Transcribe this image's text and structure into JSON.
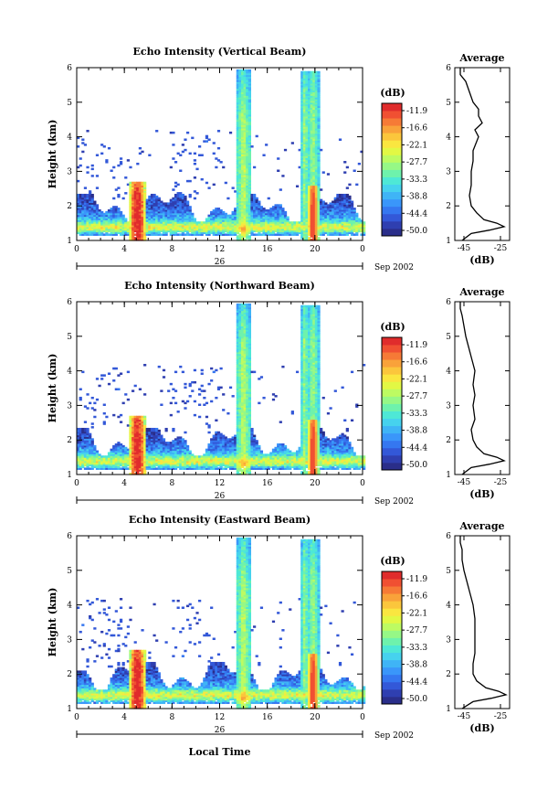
{
  "figure": {
    "x_axis_label": "Local Time",
    "date_label": "Sep 2002",
    "day_label": "26"
  },
  "colorbar": {
    "unit_label": "(dB)",
    "tick_labels": [
      "-11.9",
      "-16.6",
      "-22.1",
      "-27.7",
      "-33.3",
      "-38.8",
      "-44.4",
      "-50.0"
    ],
    "colors": [
      "#2a2e8a",
      "#2f3fb0",
      "#3358d8",
      "#3577f0",
      "#3a96fa",
      "#3fb4f6",
      "#46d2ee",
      "#4ee8d6",
      "#6ef2ac",
      "#96f886",
      "#bdfb62",
      "#e2f844",
      "#fae640",
      "#fbc63c",
      "#f9a23a",
      "#f67a36",
      "#f05032",
      "#e02c2c"
    ]
  },
  "chart_data": [
    {
      "type": "heatmap",
      "title": "Echo Intensity (Vertical Beam)",
      "xlabel": "",
      "ylabel": "Height (km)",
      "xlim": [
        0,
        24
      ],
      "ylim": [
        1,
        6
      ],
      "x_ticks": [
        "0",
        "4",
        "8",
        "12",
        "16",
        "20",
        "0"
      ],
      "y_ticks": [
        "1",
        "2",
        "3",
        "4",
        "5",
        "6"
      ],
      "colorbar_range_dB": [
        -50.0,
        -11.9
      ],
      "features": [
        {
          "kind": "low-level echo layer",
          "time_h": [
            0,
            24
          ],
          "height_km": [
            1.2,
            2.3
          ],
          "peak_dB": -30
        },
        {
          "kind": "rain cell",
          "time_h": [
            4.5,
            5.7
          ],
          "height_km": [
            1.2,
            2.6
          ],
          "peak_dB": -14
        },
        {
          "kind": "deep convection column",
          "time_h": [
            13.6,
            14.4
          ],
          "height_km": [
            1.2,
            6.0
          ],
          "peak_dB": -30
        },
        {
          "kind": "deep convection column",
          "time_h": [
            19.0,
            20.4
          ],
          "height_km": [
            1.2,
            6.0
          ],
          "peak_dB": -16
        }
      ],
      "average_profile": {
        "title": "Average",
        "xlabel": "(dB)",
        "x_ticks": [
          "-45",
          "-25"
        ],
        "xlim": [
          -50,
          -20
        ],
        "height_km": [
          1.0,
          1.2,
          1.3,
          1.4,
          1.5,
          1.6,
          1.8,
          2.0,
          2.3,
          2.6,
          3.0,
          3.3,
          3.6,
          4.0,
          4.2,
          4.4,
          4.6,
          4.8,
          5.0,
          5.3,
          5.6,
          5.8,
          6.0
        ],
        "dB": [
          -46,
          -41,
          -31,
          -23,
          -27,
          -34,
          -38,
          -41,
          -42,
          -41,
          -41,
          -40,
          -40,
          -37,
          -39,
          -35,
          -37,
          -37,
          -40,
          -42,
          -44,
          -47,
          -47
        ]
      }
    },
    {
      "type": "heatmap",
      "title": "Echo Intensity (Northward Beam)",
      "xlabel": "",
      "ylabel": "Height (km)",
      "xlim": [
        0,
        24
      ],
      "ylim": [
        1,
        6
      ],
      "x_ticks": [
        "0",
        "4",
        "8",
        "12",
        "16",
        "20",
        "0"
      ],
      "y_ticks": [
        "1",
        "2",
        "3",
        "4",
        "5",
        "6"
      ],
      "colorbar_range_dB": [
        -50.0,
        -11.9
      ],
      "features": [
        {
          "kind": "low-level echo layer",
          "time_h": [
            0,
            24
          ],
          "height_km": [
            1.2,
            2.2
          ],
          "peak_dB": -30
        },
        {
          "kind": "rain cell",
          "time_h": [
            4.5,
            5.7
          ],
          "height_km": [
            1.2,
            2.7
          ],
          "peak_dB": -14
        },
        {
          "kind": "deep convection column",
          "time_h": [
            13.6,
            14.4
          ],
          "height_km": [
            1.2,
            5.9
          ],
          "peak_dB": -30
        },
        {
          "kind": "deep convection column",
          "time_h": [
            19.0,
            20.4
          ],
          "height_km": [
            1.2,
            5.9
          ],
          "peak_dB": -16
        }
      ],
      "average_profile": {
        "title": "Average",
        "xlabel": "(dB)",
        "x_ticks": [
          "-45",
          "-25"
        ],
        "xlim": [
          -50,
          -20
        ],
        "height_km": [
          1.0,
          1.2,
          1.3,
          1.4,
          1.5,
          1.6,
          1.8,
          2.0,
          2.3,
          2.6,
          3.0,
          3.3,
          3.6,
          4.0,
          4.2,
          4.4,
          4.6,
          4.8,
          5.0,
          5.3,
          5.6,
          5.8,
          6.0
        ],
        "dB": [
          -46,
          -41,
          -31,
          -23,
          -27,
          -34,
          -38,
          -40,
          -41,
          -39,
          -40,
          -39,
          -40,
          -39,
          -40,
          -41,
          -42,
          -43,
          -44,
          -45,
          -46,
          -47,
          -47
        ]
      }
    },
    {
      "type": "heatmap",
      "title": "Echo Intensity (Eastward Beam)",
      "xlabel": "Local Time",
      "ylabel": "Height (km)",
      "xlim": [
        0,
        24
      ],
      "ylim": [
        1,
        6
      ],
      "x_ticks": [
        "0",
        "4",
        "8",
        "12",
        "16",
        "20",
        "0"
      ],
      "y_ticks": [
        "1",
        "2",
        "3",
        "4",
        "5",
        "6"
      ],
      "colorbar_range_dB": [
        -50.0,
        -11.9
      ],
      "features": [
        {
          "kind": "low-level echo layer",
          "time_h": [
            0,
            24
          ],
          "height_km": [
            1.2,
            2.3
          ],
          "peak_dB": -30
        },
        {
          "kind": "rain cell",
          "time_h": [
            4.5,
            5.7
          ],
          "height_km": [
            1.2,
            2.7
          ],
          "peak_dB": -14
        },
        {
          "kind": "deep convection column",
          "time_h": [
            13.6,
            14.4
          ],
          "height_km": [
            1.2,
            5.9
          ],
          "peak_dB": -30
        },
        {
          "kind": "deep convection column",
          "time_h": [
            19.0,
            20.4
          ],
          "height_km": [
            1.2,
            5.9
          ],
          "peak_dB": -16
        }
      ],
      "average_profile": {
        "title": "Average",
        "xlabel": "(dB)",
        "x_ticks": [
          "-45",
          "-25"
        ],
        "xlim": [
          -50,
          -20
        ],
        "height_km": [
          1.0,
          1.2,
          1.3,
          1.4,
          1.5,
          1.6,
          1.8,
          2.0,
          2.3,
          2.6,
          3.0,
          3.3,
          3.6,
          4.0,
          4.2,
          4.4,
          4.6,
          4.8,
          5.0,
          5.3,
          5.6,
          5.8,
          6.0
        ],
        "dB": [
          -46,
          -40,
          -30,
          -22,
          -26,
          -33,
          -38,
          -40,
          -40,
          -39,
          -39,
          -39,
          -39,
          -40,
          -41,
          -42,
          -43,
          -44,
          -45,
          -46,
          -46,
          -47,
          -47
        ]
      }
    }
  ]
}
